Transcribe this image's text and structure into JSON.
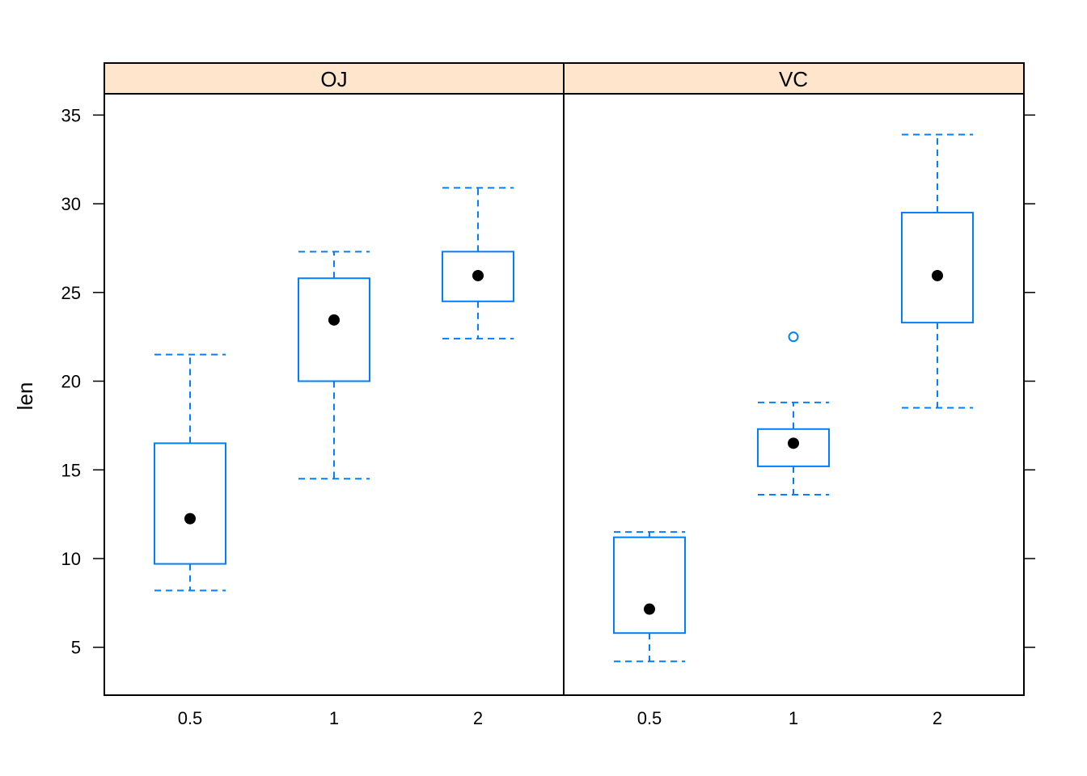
{
  "chart_data": {
    "type": "boxplot",
    "ylabel": "len",
    "xlabel": "",
    "ylim": [
      2.3,
      36.2
    ],
    "y_ticks": [
      5,
      10,
      15,
      20,
      25,
      30,
      35
    ],
    "categories": [
      "0.5",
      "1",
      "2"
    ],
    "panels": [
      {
        "strip_label": "OJ",
        "boxes": [
          {
            "category": "0.5",
            "whisker_low": 8.2,
            "q1": 9.7,
            "median": 12.25,
            "q3": 16.5,
            "whisker_high": 21.5,
            "outliers": []
          },
          {
            "category": "1",
            "whisker_low": 14.5,
            "q1": 20.0,
            "median": 23.45,
            "q3": 25.8,
            "whisker_high": 27.3,
            "outliers": []
          },
          {
            "category": "2",
            "whisker_low": 22.4,
            "q1": 24.5,
            "median": 25.95,
            "q3": 27.3,
            "whisker_high": 30.9,
            "outliers": []
          }
        ]
      },
      {
        "strip_label": "VC",
        "boxes": [
          {
            "category": "0.5",
            "whisker_low": 4.2,
            "q1": 5.8,
            "median": 7.15,
            "q3": 11.2,
            "whisker_high": 11.5,
            "outliers": []
          },
          {
            "category": "1",
            "whisker_low": 13.6,
            "q1": 15.2,
            "median": 16.5,
            "q3": 17.3,
            "whisker_high": 18.8,
            "outliers": [
              22.5
            ]
          },
          {
            "category": "2",
            "whisker_low": 18.5,
            "q1": 23.3,
            "median": 25.95,
            "q3": 29.5,
            "whisker_high": 33.9,
            "outliers": []
          }
        ]
      }
    ],
    "colors": {
      "box": "#0080ff",
      "median_dot": "#000000",
      "strip_background": "#ffe5cc"
    }
  }
}
